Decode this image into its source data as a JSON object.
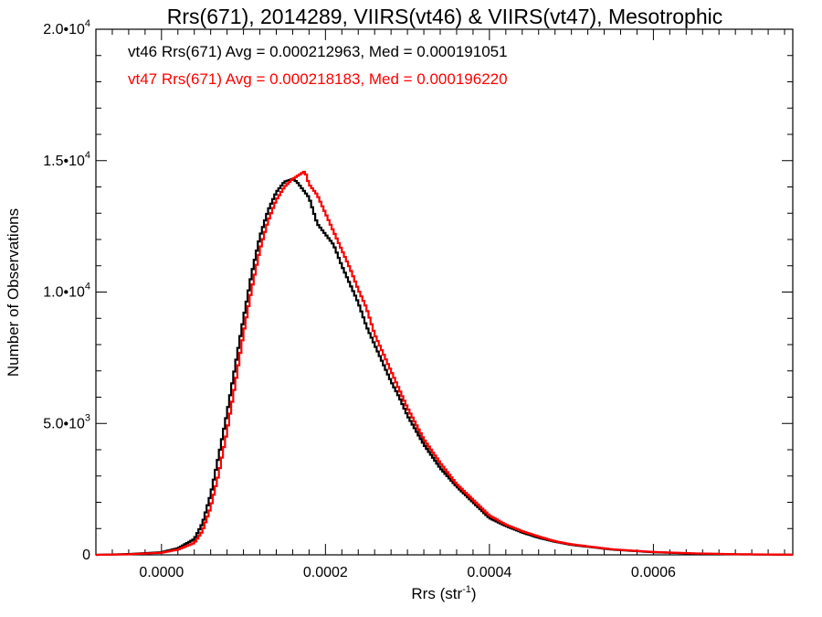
{
  "chart_data": {
    "type": "line",
    "style": "histogram-step",
    "title": "Rrs(671), 2014289, VIIRS(vt46) & VIIRS(vt47), Mesotrophic",
    "xlabel_base": "Rrs (str",
    "xlabel_sup": "-1",
    "xlabel_close": ")",
    "ylabel": "Number of Observations",
    "xlim": [
      -8e-05,
      0.00077
    ],
    "ylim": [
      0,
      20000
    ],
    "x_ticks": [
      {
        "value": 0.0,
        "label": "0.0000"
      },
      {
        "value": 0.0002,
        "label": "0.0002"
      },
      {
        "value": 0.0004,
        "label": "0.0004"
      },
      {
        "value": 0.0006,
        "label": "0.0006"
      }
    ],
    "y_ticks": [
      {
        "value": 0,
        "mant": "0",
        "exp": ""
      },
      {
        "value": 5000,
        "mant": "5.0•10",
        "exp": "3"
      },
      {
        "value": 10000,
        "mant": "1.0•10",
        "exp": "4"
      },
      {
        "value": 15000,
        "mant": "1.5•10",
        "exp": "4"
      },
      {
        "value": 20000,
        "mant": "2.0•10",
        "exp": "4"
      }
    ],
    "annotations": [
      {
        "text": "vt46 Rrs(671) Avg = 0.000212963, Med = 0.000191051",
        "color": "#000000"
      },
      {
        "text": "vt47 Rrs(671) Avg = 0.000218183, Med = 0.000196220",
        "color": "#ff0000"
      }
    ],
    "series": [
      {
        "name": "vt46",
        "color": "#000000",
        "x": [
          -8e-05,
          -4e-05,
          0.0,
          2e-05,
          4e-05,
          5e-05,
          6e-05,
          7e-05,
          8e-05,
          9e-05,
          0.0001,
          0.00011,
          0.00012,
          0.00013,
          0.00014,
          0.00015,
          0.00016,
          0.000165,
          0.00017,
          0.00018,
          0.00019,
          0.0002,
          0.00021,
          0.00022,
          0.00023,
          0.00024,
          0.00025,
          0.00026,
          0.00027,
          0.00028,
          0.00029,
          0.0003,
          0.00032,
          0.00034,
          0.00036,
          0.00038,
          0.0004,
          0.00042,
          0.00044,
          0.00046,
          0.00048,
          0.0005,
          0.00055,
          0.0006,
          0.00065,
          0.0007,
          0.00077
        ],
        "y": [
          0,
          30,
          100,
          250,
          600,
          1200,
          2300,
          3800,
          5400,
          7200,
          9000,
          10700,
          12100,
          13100,
          13800,
          14200,
          14300,
          14200,
          14000,
          13600,
          12600,
          12200,
          11800,
          11000,
          10300,
          9600,
          8700,
          8000,
          7300,
          6600,
          6000,
          5300,
          4200,
          3300,
          2600,
          2000,
          1400,
          1100,
          850,
          650,
          500,
          380,
          200,
          100,
          50,
          20,
          5
        ]
      },
      {
        "name": "vt47",
        "color": "#ff0000",
        "x": [
          -8e-05,
          -4e-05,
          0.0,
          2e-05,
          4e-05,
          5e-05,
          6e-05,
          7e-05,
          8e-05,
          9e-05,
          0.0001,
          0.00011,
          0.00012,
          0.00013,
          0.00014,
          0.00015,
          0.00016,
          0.00017,
          0.000175,
          0.00018,
          0.00019,
          0.0002,
          0.00021,
          0.00022,
          0.00023,
          0.00024,
          0.00025,
          0.00026,
          0.00027,
          0.00028,
          0.00029,
          0.0003,
          0.00032,
          0.00034,
          0.00036,
          0.00038,
          0.0004,
          0.00042,
          0.00044,
          0.00046,
          0.00048,
          0.0005,
          0.00055,
          0.0006,
          0.00065,
          0.0007,
          0.00077
        ],
        "y": [
          0,
          20,
          80,
          200,
          450,
          900,
          1800,
          3100,
          4700,
          6500,
          8400,
          10100,
          11600,
          12700,
          13500,
          14000,
          14300,
          14500,
          14600,
          14100,
          13700,
          13000,
          12300,
          11600,
          10900,
          10100,
          9400,
          8400,
          7700,
          7000,
          6300,
          5600,
          4400,
          3500,
          2700,
          2100,
          1500,
          1150,
          900,
          700,
          520,
          400,
          210,
          110,
          55,
          25,
          6
        ]
      }
    ]
  }
}
